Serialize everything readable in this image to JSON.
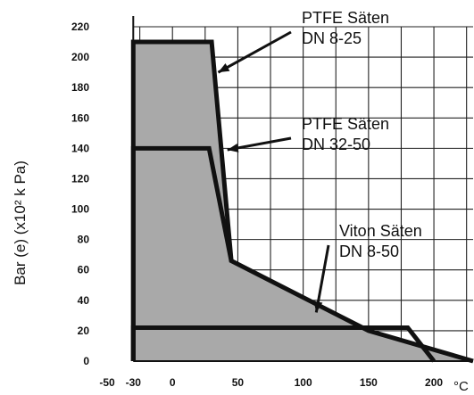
{
  "chart_data": {
    "type": "area",
    "title": "",
    "xlabel": "",
    "x_unit": "°C",
    "ylabel": "Bar (e) (x10² k Pa)",
    "xlim": [
      -50,
      230
    ],
    "ylim": [
      0,
      220
    ],
    "x_ticks": [
      "-50",
      "-30",
      "0",
      "50",
      "100",
      "150",
      "200"
    ],
    "y_ticks": [
      "0",
      "20",
      "40",
      "60",
      "80",
      "100",
      "120",
      "140",
      "160",
      "180",
      "200",
      "220"
    ],
    "grid": true,
    "series": [
      {
        "name": "PTFE Säten DN 8-25",
        "x": [
          -30,
          -30,
          30,
          45,
          150,
          230
        ],
        "y": [
          0,
          210,
          210,
          66,
          20,
          0
        ]
      },
      {
        "name": "PTFE Säten DN 32-50",
        "x": [
          -30,
          -30,
          28,
          45
        ],
        "y": [
          0,
          140,
          140,
          66
        ]
      },
      {
        "name": "Viton Säten DN 8-50",
        "x": [
          -30,
          -30,
          180,
          200,
          200
        ],
        "y": [
          0,
          22,
          22,
          0,
          0
        ]
      }
    ],
    "annotations": [
      {
        "line1": "PTFE Säten",
        "line2": "DN 8-25",
        "x": 35,
        "y": 190
      },
      {
        "line1": "PTFE Säten",
        "line2": "DN 32-50",
        "x": 42,
        "y": 139
      },
      {
        "line1": "Viton Säten",
        "line2": "DN 8-50",
        "x": 110,
        "y": 32
      }
    ]
  }
}
